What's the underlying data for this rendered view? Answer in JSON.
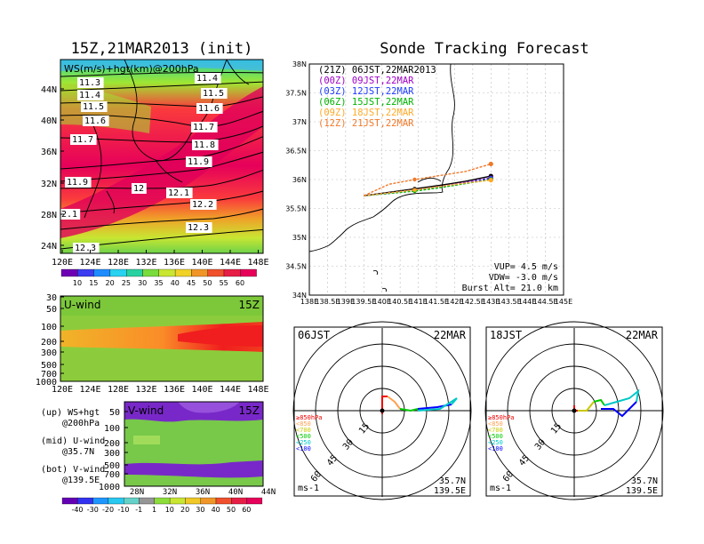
{
  "left_title": "15Z,21MAR2013 (init)",
  "right_title": "Sonde Tracking Forecast",
  "map_panel": {
    "label": "WS(m/s)+hgt(km)@200hPa",
    "lon_labels": [
      "120E",
      "124E",
      "128E",
      "132E",
      "136E",
      "140E",
      "144E",
      "148E"
    ],
    "lat_labels": [
      "44N",
      "40N",
      "36N",
      "32N",
      "28N",
      "24N"
    ],
    "contour_labels": [
      "11.3",
      "11.4",
      "11.4",
      "11.5",
      "11.5",
      "11.6",
      "11.6",
      "11.7",
      "11.7",
      "11.8",
      "11.9",
      "11.9",
      "12",
      "12.1",
      "12.2",
      "2.1",
      "12.3",
      "12.3"
    ],
    "colorbar_labels": [
      "10",
      "15",
      "20",
      "25",
      "30",
      "35",
      "40",
      "45",
      "50",
      "55",
      "60"
    ]
  },
  "uwind_panel": {
    "label": "U-wind",
    "time": "15Z",
    "pressure_labels": [
      "30",
      "50",
      "100",
      "200",
      "300",
      "500",
      "700",
      "1000"
    ],
    "lon_labels": [
      "120E",
      "124E",
      "128E",
      "132E",
      "136E",
      "140E",
      "144E",
      "148E"
    ]
  },
  "vwind_panel": {
    "label": "V-wind",
    "time": "15Z",
    "pressure_labels": [
      "50",
      "100",
      "200",
      "300",
      "500",
      "700",
      "1000"
    ],
    "lat_labels": [
      "28N",
      "32N",
      "36N",
      "40N",
      "44N"
    ],
    "colorbar_labels": [
      "-40",
      "-30",
      "-20",
      "-10",
      "-1",
      "1",
      "10",
      "20",
      "30",
      "40",
      "50",
      "60"
    ]
  },
  "legend_notes": [
    {
      "line1": "(up) WS+hgt",
      "line2": "@200hPa"
    },
    {
      "line1": "(mid) U-wind",
      "line2": "@35.7N"
    },
    {
      "line1": "(bot) V-wind",
      "line2": "@139.5E"
    }
  ],
  "track_panel": {
    "lat_labels": [
      "38N",
      "37.5N",
      "37N",
      "36.5N",
      "36N",
      "35.5N",
      "35N",
      "34.5N",
      "34N"
    ],
    "lon_labels": [
      "138E",
      "138.5E",
      "139E",
      "139.5E",
      "140E",
      "140.5E",
      "141E",
      "141.5E",
      "142E",
      "142.5E",
      "143E",
      "143.5E",
      "144E",
      "144.5E",
      "145E"
    ],
    "launch_times": [
      {
        "text": "(21Z)  06JST,22MAR2013",
        "color": "#000000"
      },
      {
        "text": "(00Z)  09JST,22MAR",
        "color": "#a000c8"
      },
      {
        "text": "(03Z)  12JST,22MAR",
        "color": "#1e3cff"
      },
      {
        "text": "(06Z)  15JST,22MAR",
        "color": "#00b400"
      },
      {
        "text": "(09Z)  18JST,22MAR",
        "color": "#ffaa28"
      },
      {
        "text": "(12Z)  21JST,22MAR",
        "color": "#f07828"
      }
    ],
    "vup": "VUP=  4.5 m/s",
    "vdw": "VDW= -3.0 m/s",
    "burst": "Burst Alt= 21.0 km"
  },
  "hodo_left": {
    "time": "06JST",
    "date": "22MAR",
    "lat": "35.7N",
    "lon": "139.5E",
    "unit": "ms-1"
  },
  "hodo_right": {
    "time": "18JST",
    "date": "22MAR",
    "lat": "35.7N",
    "lon": "139.5E",
    "unit": "ms-1"
  },
  "hodo_rings": [
    "15",
    "30",
    "45",
    "60"
  ],
  "hodo_levels": [
    {
      "text": "≥850hPa",
      "color": "#f00000"
    },
    {
      "text": "<850",
      "color": "#ffa050"
    },
    {
      "text": "<700",
      "color": "#c8c800"
    },
    {
      "text": "<500",
      "color": "#00c800"
    },
    {
      "text": "<250",
      "color": "#00c8c8"
    },
    {
      "text": "<100",
      "color": "#0000ff"
    }
  ],
  "chart_data": {
    "type": "line",
    "title": "Sonde Tracking Forecast",
    "xlim": [
      138,
      145
    ],
    "ylim": [
      34,
      38
    ],
    "series": [
      {
        "name": "(21Z)  06JST,22MAR2013",
        "color": "#000000",
        "x": [
          139.5,
          140.2,
          140.9,
          141.6,
          142.3,
          143.0
        ],
        "y": [
          35.72,
          35.78,
          35.84,
          35.9,
          35.97,
          36.06
        ]
      },
      {
        "name": "(00Z)  09JST,22MAR",
        "color": "#a000c8",
        "x": [
          139.5,
          140.2,
          140.9,
          141.6,
          142.3,
          143.0
        ],
        "y": [
          35.72,
          35.77,
          35.82,
          35.88,
          35.95,
          36.03
        ]
      },
      {
        "name": "(03Z)  12JST,22MAR",
        "color": "#1e3cff",
        "x": [
          139.5,
          140.2,
          140.9,
          141.6,
          142.3,
          143.0
        ],
        "y": [
          35.72,
          35.76,
          35.81,
          35.87,
          35.94,
          36.02
        ]
      },
      {
        "name": "(06Z)  15JST,22MAR",
        "color": "#00b400",
        "x": [
          139.5,
          140.2,
          140.9,
          141.6,
          142.3,
          143.0
        ],
        "y": [
          35.72,
          35.76,
          35.8,
          35.86,
          35.93,
          36.0
        ]
      },
      {
        "name": "(09Z)  18JST,22MAR",
        "color": "#ffaa28",
        "x": [
          139.5,
          140.2,
          140.9,
          141.6,
          142.3,
          143.0
        ],
        "y": [
          35.72,
          35.77,
          35.82,
          35.88,
          35.94,
          35.99
        ]
      },
      {
        "name": "(12Z)  21JST,22MAR",
        "color": "#f07828",
        "x": [
          139.5,
          140.2,
          140.9,
          141.6,
          142.3,
          143.0
        ],
        "y": [
          35.72,
          35.92,
          36.0,
          36.07,
          36.14,
          36.27
        ]
      }
    ]
  }
}
